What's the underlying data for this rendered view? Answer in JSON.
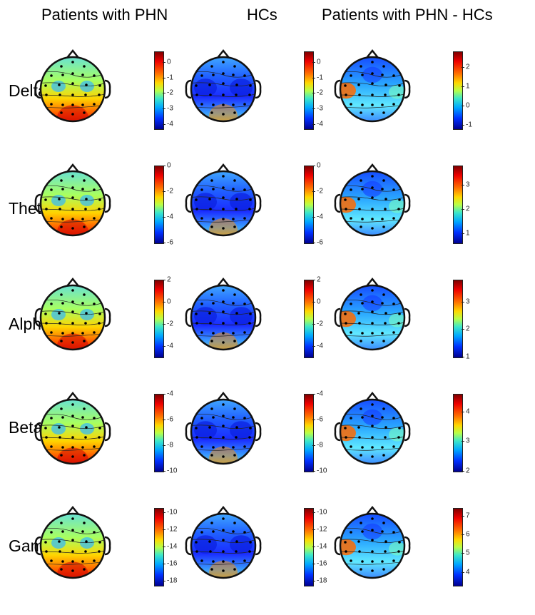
{
  "columns": [
    "Patients with PHN",
    "HCs",
    "Patients with PHN - HCs"
  ],
  "rows": [
    {
      "label": "Delta",
      "maps": [
        {
          "ticks": [
            "0",
            "-1",
            "-2",
            "-3",
            "-4"
          ],
          "min": -4.3,
          "max": 0.7,
          "pattern": "phn"
        },
        {
          "ticks": [
            "0",
            "-1",
            "-2",
            "-3",
            "-4"
          ],
          "min": -4.3,
          "max": 0.7,
          "pattern": "hc"
        },
        {
          "ticks": [
            "2",
            "1",
            "0",
            "-1"
          ],
          "min": -1.2,
          "max": 2.8,
          "pattern": "diff"
        }
      ]
    },
    {
      "label": "Theta",
      "maps": [
        {
          "ticks": [
            "0",
            "-2",
            "-4",
            "-6"
          ],
          "min": -6.0,
          "max": 0.0,
          "pattern": "phn"
        },
        {
          "ticks": [
            "0",
            "-2",
            "-4",
            "-6"
          ],
          "min": -6.0,
          "max": 0.0,
          "pattern": "hc"
        },
        {
          "ticks": [
            "3",
            "2",
            "1"
          ],
          "min": 0.6,
          "max": 3.8,
          "pattern": "diff"
        }
      ]
    },
    {
      "label": "Alpha",
      "maps": [
        {
          "ticks": [
            "2",
            "0",
            "-2",
            "-4"
          ],
          "min": -5.0,
          "max": 2.0,
          "pattern": "phn"
        },
        {
          "ticks": [
            "2",
            "0",
            "-2",
            "-4"
          ],
          "min": -5.0,
          "max": 2.0,
          "pattern": "hc"
        },
        {
          "ticks": [
            "3",
            "2",
            "1"
          ],
          "min": 1.0,
          "max": 3.8,
          "pattern": "diff"
        }
      ]
    },
    {
      "label": "Beta",
      "maps": [
        {
          "ticks": [
            "-4",
            "-6",
            "-8",
            "-10"
          ],
          "min": -10.0,
          "max": -4.0,
          "pattern": "phn"
        },
        {
          "ticks": [
            "-4",
            "-6",
            "-8",
            "-10"
          ],
          "min": -10.0,
          "max": -4.0,
          "pattern": "hc"
        },
        {
          "ticks": [
            "4",
            "3",
            "2"
          ],
          "min": 2.0,
          "max": 4.6,
          "pattern": "diff"
        }
      ]
    },
    {
      "label": "Gamma",
      "maps": [
        {
          "ticks": [
            "-10",
            "-12",
            "-14",
            "-16",
            "-18"
          ],
          "min": -18.5,
          "max": -9.5,
          "pattern": "phn"
        },
        {
          "ticks": [
            "-10",
            "-12",
            "-14",
            "-16",
            "-18"
          ],
          "min": -18.5,
          "max": -9.5,
          "pattern": "hc"
        },
        {
          "ticks": [
            "7",
            "6",
            "5",
            "4"
          ],
          "min": 3.3,
          "max": 7.4,
          "pattern": "diff"
        }
      ]
    }
  ],
  "colormap": [
    "#000090",
    "#0030ff",
    "#00a8ff",
    "#3ee8c8",
    "#b8ff48",
    "#ffd800",
    "#ff7000",
    "#ee0000",
    "#7f0000"
  ]
}
